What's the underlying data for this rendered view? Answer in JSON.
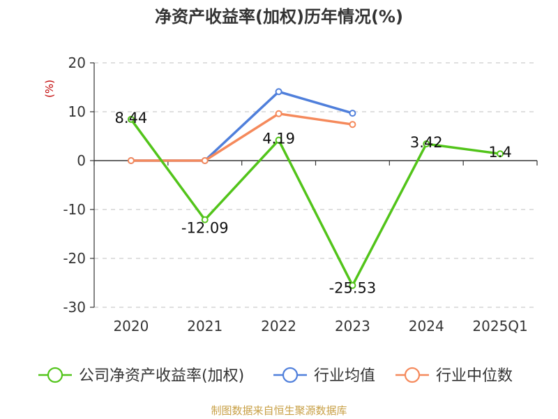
{
  "chart_data": {
    "type": "line",
    "title": "净资产收益率(加权)历年情况(%)",
    "ylabel": "(%)",
    "categories": [
      "2020",
      "2021",
      "2022",
      "2023",
      "2024",
      "2025Q1"
    ],
    "ylim": [
      -30,
      20
    ],
    "yticks": [
      20,
      10,
      0,
      -10,
      -20,
      -30
    ],
    "grid": true,
    "legend_position": "bottom",
    "series": [
      {
        "name": "公司净资产收益率(加权)",
        "color": "#52c41a",
        "values": [
          8.44,
          -12.09,
          4.19,
          -25.53,
          3.42,
          1.4
        ],
        "labels": [
          "8.44",
          "-12.09",
          "4.19",
          "-25.53",
          "3.42",
          "1.4"
        ]
      },
      {
        "name": "行业均值",
        "color": "#4f7fdb",
        "values": [
          0,
          0,
          14.1,
          9.7,
          null,
          null
        ]
      },
      {
        "name": "行业中位数",
        "color": "#f5895b",
        "values": [
          0,
          0,
          9.6,
          7.4,
          null,
          null
        ]
      }
    ]
  },
  "source": {
    "text": "制图数据来自恒生聚源数据库",
    "color": "#c8a046"
  },
  "colors": {
    "axis_label": "#c00000",
    "grid": "#cccccc",
    "axis": "#333333"
  }
}
